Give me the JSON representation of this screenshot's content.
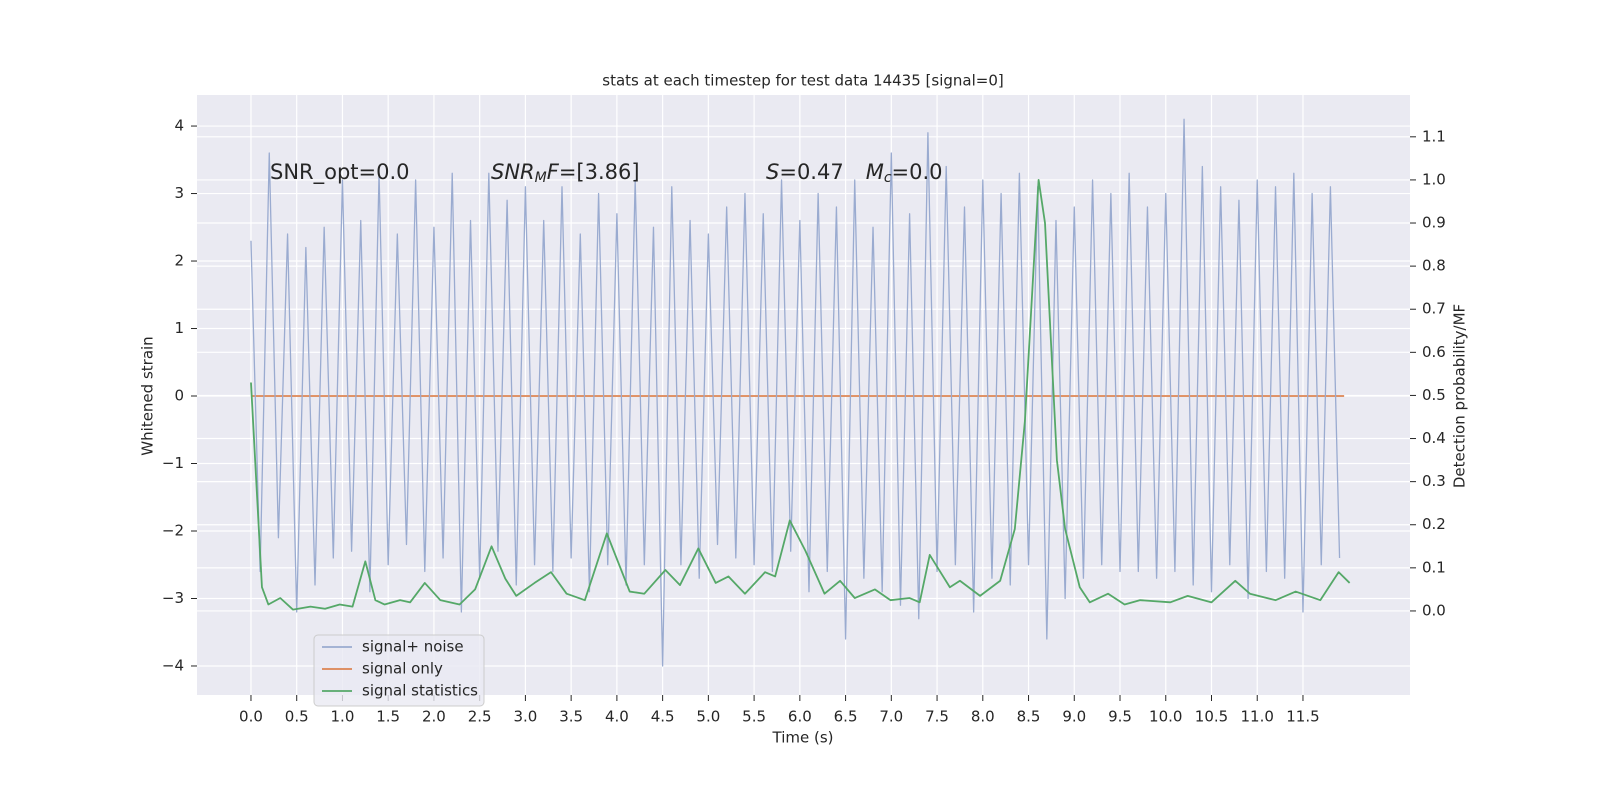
{
  "chart_data": {
    "type": "line",
    "title": "stats at each timestep for test data 14435 [signal=0]",
    "xlabel": "Time (s)",
    "ylabel": "Whitened strain",
    "y2label": "Detection probability/MF",
    "annotations": [
      [
        {
          "text": "SNR_opt=0.0",
          "italic": false,
          "sub": false
        }
      ],
      [
        {
          "text": "SNR",
          "italic": true,
          "sub": false
        },
        {
          "text": "M",
          "italic": true,
          "sub": true
        },
        {
          "text": "F",
          "italic": true,
          "sub": false
        },
        {
          "text": "=[3.86]",
          "italic": false,
          "sub": false
        }
      ],
      [
        {
          "text": "S",
          "italic": true,
          "sub": false
        },
        {
          "text": "=0.47",
          "italic": false,
          "sub": false
        },
        {
          "text": "M",
          "italic": true,
          "sub": false
        },
        {
          "text": "c",
          "italic": true,
          "sub": true
        },
        {
          "text": "=0.0",
          "italic": false,
          "sub": false
        }
      ]
    ],
    "xlim": [
      -0.59,
      12.67
    ],
    "ylim": [
      -4.43,
      4.46
    ],
    "y2lim": [
      -0.195,
      1.197
    ],
    "grid": true,
    "legend": "lower left",
    "xticks": [
      {
        "value": 0,
        "label": "0.0"
      },
      {
        "value": 0.5,
        "label": "0.5"
      },
      {
        "value": 1,
        "label": "1.0"
      },
      {
        "value": 1.5,
        "label": "1.5"
      },
      {
        "value": 2,
        "label": "2.0"
      },
      {
        "value": 2.5,
        "label": "2.5"
      },
      {
        "value": 3,
        "label": "3.0"
      },
      {
        "value": 3.5,
        "label": "3.5"
      },
      {
        "value": 4,
        "label": "4.0"
      },
      {
        "value": 4.5,
        "label": "4.5"
      },
      {
        "value": 5,
        "label": "5.0"
      },
      {
        "value": 5.5,
        "label": "5.5"
      },
      {
        "value": 6,
        "label": "6.0"
      },
      {
        "value": 6.5,
        "label": "6.5"
      },
      {
        "value": 7,
        "label": "7.0"
      },
      {
        "value": 7.5,
        "label": "7.5"
      },
      {
        "value": 8,
        "label": "8.0"
      },
      {
        "value": 8.5,
        "label": "8.5"
      },
      {
        "value": 9,
        "label": "9.0"
      },
      {
        "value": 9.5,
        "label": "9.5"
      },
      {
        "value": 10,
        "label": "10.0"
      },
      {
        "value": 10.5,
        "label": "10.5"
      },
      {
        "value": 11,
        "label": "11.0"
      },
      {
        "value": 11.5,
        "label": "11.5"
      }
    ],
    "yticks": [
      {
        "value": -4,
        "label": "−4"
      },
      {
        "value": -3,
        "label": "−3"
      },
      {
        "value": -2,
        "label": "−2"
      },
      {
        "value": -1,
        "label": "−1"
      },
      0,
      1,
      2,
      3,
      4
    ],
    "y2ticks": [
      {
        "value": 0,
        "label": "0.0"
      },
      {
        "value": 0.1,
        "label": "0.1"
      },
      {
        "value": 0.2,
        "label": "0.2"
      },
      {
        "value": 0.3,
        "label": "0.3"
      },
      {
        "value": 0.4,
        "label": "0.4"
      },
      {
        "value": 0.5,
        "label": "0.5"
      },
      {
        "value": 0.6,
        "label": "0.6"
      },
      {
        "value": 0.7,
        "label": "0.7"
      },
      {
        "value": 0.8,
        "label": "0.8"
      },
      {
        "value": 0.9,
        "label": "0.9"
      },
      {
        "value": 1,
        "label": "1.0"
      },
      {
        "value": 1.1,
        "label": "1.1"
      }
    ],
    "series": [
      {
        "name": "signal+ noise",
        "color": "#9aabd0",
        "x": [
          0.0,
          0.1,
          0.2,
          0.3,
          0.4,
          0.5,
          0.6,
          0.7,
          0.8,
          0.9,
          1.0,
          1.1,
          1.2,
          1.3,
          1.4,
          1.5,
          1.6,
          1.7,
          1.8,
          1.9,
          2.0,
          2.1,
          2.2,
          2.3,
          2.4,
          2.5,
          2.6,
          2.7,
          2.8,
          2.9,
          3.0,
          3.1,
          3.2,
          3.3,
          3.4,
          3.5,
          3.6,
          3.7,
          3.8,
          3.9,
          4.0,
          4.1,
          4.2,
          4.3,
          4.4,
          4.5,
          4.6,
          4.7,
          4.8,
          4.9,
          5.0,
          5.1,
          5.2,
          5.3,
          5.4,
          5.5,
          5.6,
          5.7,
          5.8,
          5.9,
          6.0,
          6.1,
          6.2,
          6.3,
          6.4,
          6.5,
          6.6,
          6.7,
          6.8,
          6.9,
          7.0,
          7.1,
          7.2,
          7.3,
          7.4,
          7.5,
          7.6,
          7.7,
          7.8,
          7.9,
          8.0,
          8.1,
          8.2,
          8.3,
          8.4,
          8.5,
          8.6,
          8.7,
          8.8,
          8.9,
          9.0,
          9.1,
          9.2,
          9.3,
          9.4,
          9.5,
          9.6,
          9.7,
          9.8,
          9.9,
          10.0,
          10.1,
          10.2,
          10.3,
          10.4,
          10.5,
          10.6,
          10.7,
          10.8,
          10.9,
          11.0,
          11.1,
          11.2,
          11.3,
          11.4,
          11.5,
          11.6,
          11.7,
          11.8,
          11.9
        ],
        "values": [
          2.3,
          -2.6,
          3.6,
          -2.1,
          2.4,
          -3.2,
          2.2,
          -2.8,
          2.5,
          -2.4,
          3.2,
          -2.3,
          2.6,
          -2.9,
          3.3,
          -2.5,
          2.4,
          -2.2,
          3.2,
          -2.6,
          2.5,
          -2.4,
          3.3,
          -3.2,
          2.6,
          -2.7,
          3.3,
          -2.3,
          2.9,
          -2.8,
          3.1,
          -2.5,
          2.6,
          -2.6,
          3.1,
          -2.4,
          2.4,
          -2.9,
          3.0,
          -2.5,
          2.7,
          -2.8,
          3.2,
          -2.5,
          2.5,
          -4.0,
          3.1,
          -2.5,
          2.6,
          -2.7,
          2.4,
          -2.2,
          2.8,
          -2.4,
          3.0,
          -2.5,
          2.7,
          -2.6,
          3.2,
          -2.3,
          2.6,
          -2.9,
          3.0,
          -2.6,
          2.8,
          -3.6,
          3.2,
          -2.7,
          2.5,
          -2.9,
          3.6,
          -3.1,
          2.7,
          -3.3,
          3.9,
          -2.6,
          3.4,
          -2.5,
          2.8,
          -3.2,
          3.2,
          -2.7,
          3.0,
          -2.8,
          3.3,
          -2.5,
          3.1,
          -3.6,
          2.6,
          -3.0,
          2.8,
          -2.7,
          3.2,
          -2.5,
          3.0,
          -2.6,
          3.3,
          -2.6,
          2.8,
          -2.7,
          3.0,
          -2.6,
          4.1,
          -2.8,
          3.4,
          -2.9,
          3.1,
          -2.5,
          2.9,
          -3.0,
          3.2,
          -2.6,
          3.1,
          -2.7,
          3.3,
          -3.2,
          3.0,
          -2.5,
          3.1,
          -2.4
        ]
      },
      {
        "name": "signal only",
        "color": "#dd8452",
        "x": [
          0.0,
          11.95
        ],
        "values": [
          0,
          0
        ]
      },
      {
        "name": "signal statistics",
        "color": "#55a868",
        "axis": "y2",
        "x": [
          0.0,
          0.12,
          0.19,
          0.32,
          0.46,
          0.65,
          0.81,
          0.97,
          1.11,
          1.25,
          1.36,
          1.46,
          1.63,
          1.74,
          1.9,
          2.07,
          2.28,
          2.45,
          2.63,
          2.78,
          2.9,
          3.1,
          3.28,
          3.45,
          3.65,
          3.89,
          4.14,
          4.3,
          4.53,
          4.69,
          4.89,
          5.08,
          5.22,
          5.4,
          5.62,
          5.73,
          5.89,
          6.06,
          6.27,
          6.44,
          6.6,
          6.82,
          6.99,
          7.2,
          7.31,
          7.42,
          7.64,
          7.75,
          7.97,
          8.19,
          8.35,
          8.46,
          8.61,
          8.68,
          8.81,
          8.9,
          9.06,
          9.17,
          9.37,
          9.55,
          9.72,
          10.05,
          10.24,
          10.5,
          10.76,
          10.92,
          11.2,
          11.42,
          11.69,
          11.89,
          12.01
        ],
        "values": [
          0.53,
          0.055,
          0.015,
          0.03,
          0.003,
          0.01,
          0.005,
          0.015,
          0.01,
          0.115,
          0.025,
          0.015,
          0.025,
          0.02,
          0.065,
          0.025,
          0.015,
          0.05,
          0.15,
          0.075,
          0.035,
          0.065,
          0.09,
          0.04,
          0.025,
          0.18,
          0.045,
          0.04,
          0.095,
          0.06,
          0.145,
          0.065,
          0.08,
          0.04,
          0.09,
          0.08,
          0.21,
          0.14,
          0.04,
          0.07,
          0.03,
          0.05,
          0.025,
          0.03,
          0.02,
          0.13,
          0.055,
          0.07,
          0.035,
          0.07,
          0.19,
          0.44,
          1.0,
          0.9,
          0.35,
          0.19,
          0.055,
          0.02,
          0.04,
          0.015,
          0.025,
          0.02,
          0.035,
          0.02,
          0.07,
          0.04,
          0.025,
          0.045,
          0.025,
          0.09,
          0.065
        ]
      }
    ]
  }
}
